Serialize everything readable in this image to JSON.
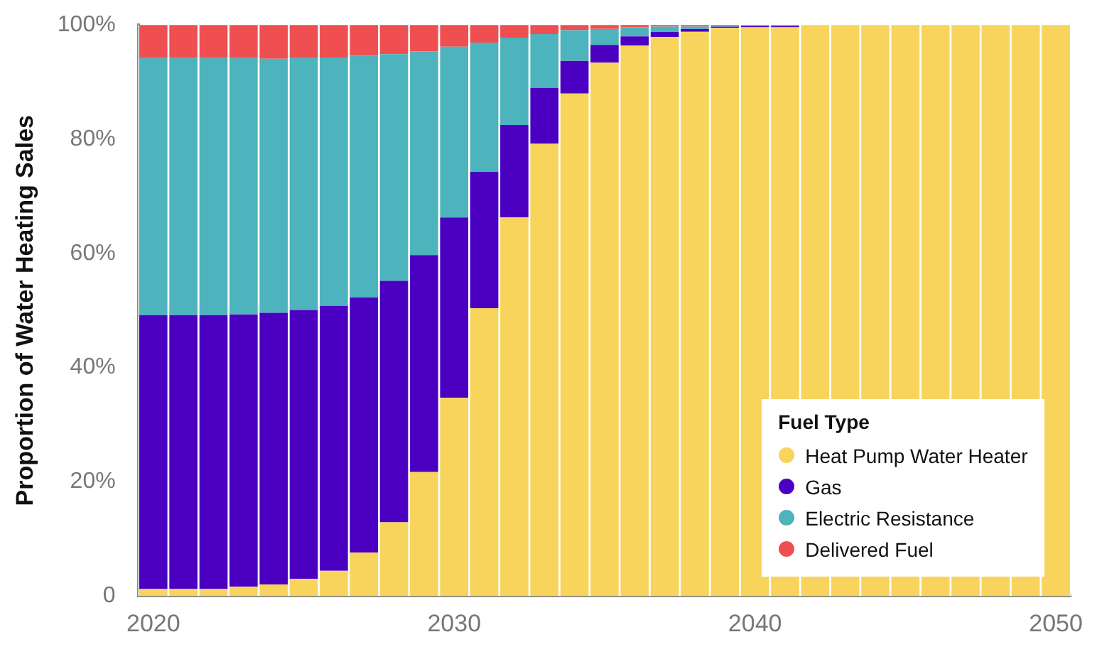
{
  "chart_data": {
    "type": "bar",
    "stacked": true,
    "ylabel": "Proportion of Water Heating Sales",
    "legend_title": "Fuel Type",
    "legend": "bottom right",
    "grid": false,
    "categories": [
      "2020",
      null,
      null,
      null,
      null,
      null,
      null,
      null,
      null,
      null,
      "2030",
      null,
      null,
      null,
      null,
      null,
      null,
      null,
      null,
      null,
      "2040",
      null,
      null,
      null,
      null,
      null,
      null,
      null,
      null,
      null,
      "2050"
    ],
    "ylim": [
      0,
      100
    ],
    "yticks": [
      0,
      {
        "value": 20,
        "label": "20%"
      },
      {
        "value": 40,
        "label": "40%"
      },
      {
        "value": 60,
        "label": "60%"
      },
      {
        "value": 80,
        "label": "80%"
      },
      {
        "value": 100,
        "label": "100%"
      }
    ],
    "series": [
      {
        "name": "Heat Pump Water Heater",
        "color": "#f9d45c",
        "values": [
          1.2,
          1.2,
          1.2,
          1.6,
          2.0,
          3.0,
          4.4,
          7.6,
          12.9,
          21.7,
          34.7,
          50.4,
          66.3,
          79.2,
          88,
          93.4,
          96.4,
          97.9,
          98.8,
          99.5,
          99.6,
          99.6,
          100,
          100,
          100,
          100,
          100,
          100,
          100,
          100,
          100
        ]
      },
      {
        "name": "Gas",
        "color": "#4b00c1",
        "values": [
          48,
          48,
          48,
          47.7,
          47.6,
          47.1,
          46.4,
          44.7,
          42.3,
          38,
          31.6,
          23.9,
          16.2,
          9.8,
          5.7,
          3.1,
          1.6,
          0.9,
          0.5,
          0.2,
          0.2,
          0.2,
          0,
          0,
          0,
          0,
          0,
          0,
          0,
          0,
          0
        ]
      },
      {
        "name": "Electric Resistance",
        "color": "#4db3bd",
        "values": [
          45,
          45,
          45,
          44.9,
          44.5,
          44.2,
          43.5,
          42.3,
          39.7,
          35.7,
          29.9,
          22.6,
          15.3,
          9.4,
          5.4,
          2.8,
          1.6,
          0.9,
          0.4,
          0.2,
          0.1,
          0.1,
          0,
          0,
          0,
          0,
          0,
          0,
          0,
          0,
          0
        ]
      },
      {
        "name": "Delivered Fuel",
        "color": "#ef4f50",
        "values": [
          5.8,
          5.8,
          5.8,
          5.8,
          5.9,
          5.7,
          5.7,
          5.4,
          5.1,
          4.6,
          3.8,
          3.1,
          2.2,
          1.6,
          0.9,
          0.7,
          0.4,
          0.3,
          0.3,
          0.1,
          0.1,
          0.1,
          0,
          0,
          0,
          0,
          0,
          0,
          0,
          0,
          0
        ]
      }
    ]
  }
}
